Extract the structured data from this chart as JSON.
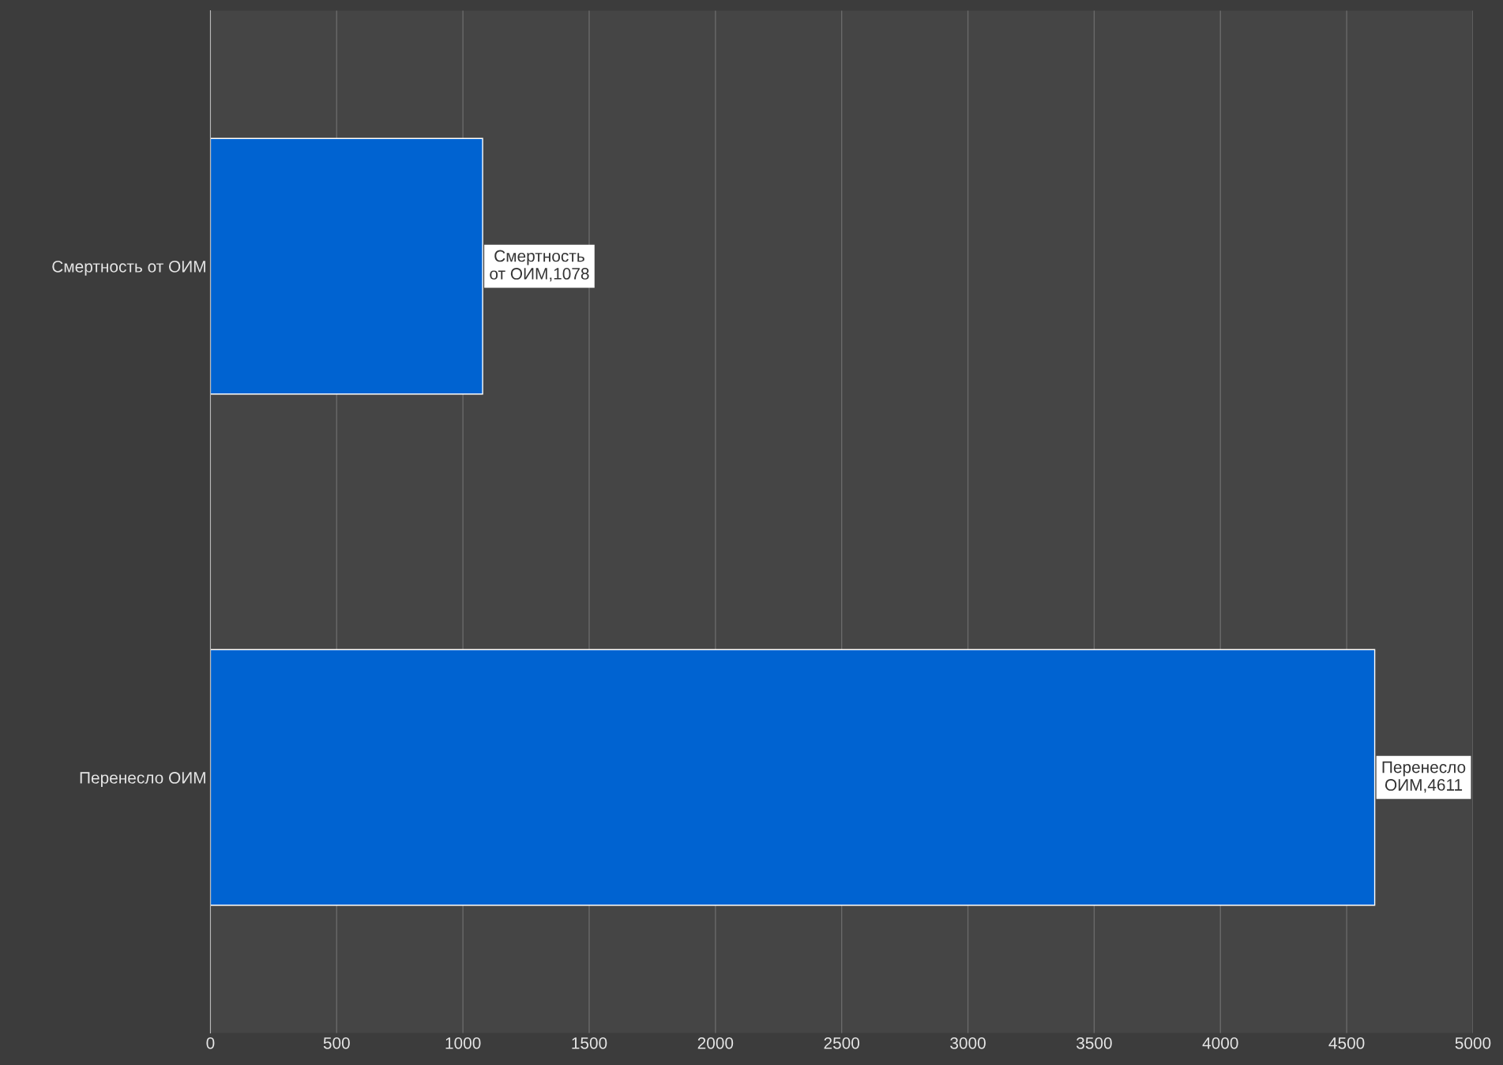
{
  "chart_data": {
    "type": "bar",
    "orientation": "horizontal",
    "categories": [
      "Смертность от ОИМ",
      "Перенесло ОИМ"
    ],
    "values": [
      1078,
      4611
    ],
    "color": "#0063d1",
    "value_labels": [
      "Смертность\nот ОИМ,1078",
      "Перенесло\nОИМ,4611"
    ],
    "xlim": [
      0,
      5000
    ],
    "xticks": [
      0,
      500,
      1000,
      1500,
      2000,
      2500,
      3000,
      3500,
      4000,
      4500,
      5000
    ],
    "grid": "x",
    "legend": false
  }
}
